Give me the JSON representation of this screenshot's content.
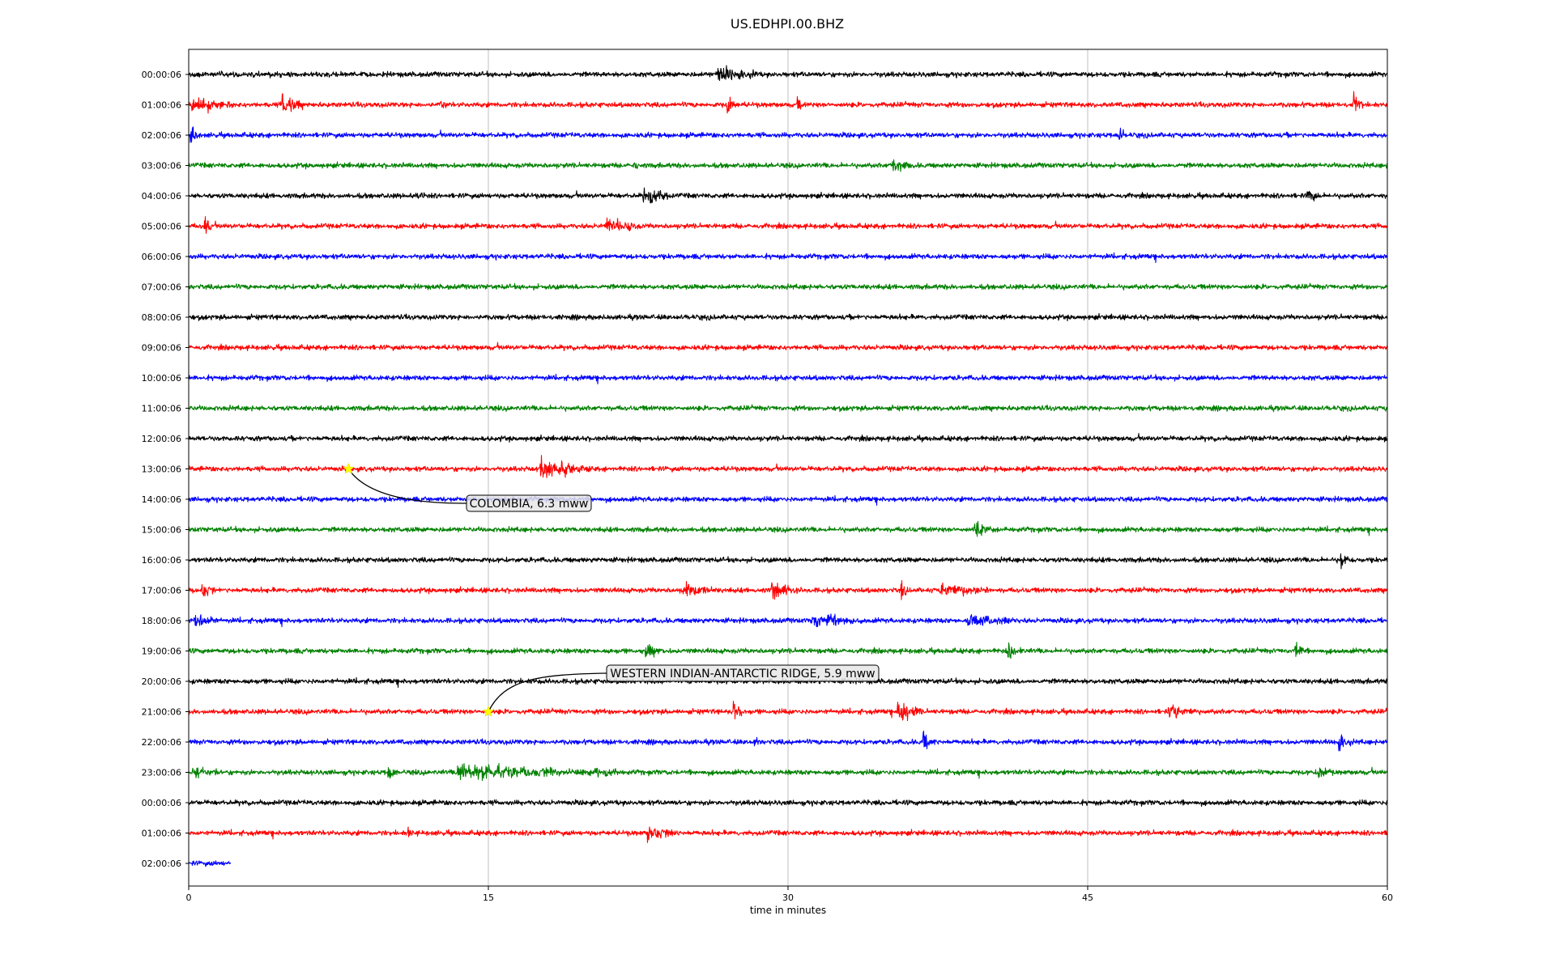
{
  "chart_data": {
    "type": "line",
    "title": "US.EDHPI.00.BHZ",
    "xlabel": "time in minutes",
    "ylabel": "",
    "xlim": [
      0,
      60
    ],
    "xticks": [
      0,
      15,
      30,
      45,
      60
    ],
    "grid": "vertical",
    "row_colors": [
      "#000000",
      "#ff0000",
      "#0000ff",
      "#008000"
    ],
    "row_labels": [
      "00:00:06",
      "01:00:06",
      "02:00:06",
      "03:00:06",
      "04:00:06",
      "05:00:06",
      "06:00:06",
      "07:00:06",
      "08:00:06",
      "09:00:06",
      "10:00:06",
      "11:00:06",
      "12:00:06",
      "13:00:06",
      "14:00:06",
      "15:00:06",
      "16:00:06",
      "17:00:06",
      "18:00:06",
      "19:00:06",
      "20:00:06",
      "21:00:06",
      "22:00:06",
      "23:00:06",
      "00:00:06",
      "01:00:06",
      "02:00:06"
    ],
    "last_row_end_minute": 2.1,
    "events": [
      {
        "row": 0,
        "minute": 26.5,
        "amp": 1.8,
        "dur": 2.0
      },
      {
        "row": 1,
        "minute": 0.2,
        "amp": 1.6,
        "dur": 2.0
      },
      {
        "row": 1,
        "minute": 4.7,
        "amp": 2.0,
        "dur": 1.0
      },
      {
        "row": 1,
        "minute": 12.6,
        "amp": 1.4,
        "dur": 0.4
      },
      {
        "row": 1,
        "minute": 27.0,
        "amp": 2.6,
        "dur": 0.4
      },
      {
        "row": 1,
        "minute": 30.5,
        "amp": 1.2,
        "dur": 0.3
      },
      {
        "row": 1,
        "minute": 58.3,
        "amp": 2.0,
        "dur": 0.5
      },
      {
        "row": 2,
        "minute": 0.1,
        "amp": 2.4,
        "dur": 0.4
      },
      {
        "row": 2,
        "minute": 46.6,
        "amp": 1.8,
        "dur": 0.4
      },
      {
        "row": 3,
        "minute": 22.3,
        "amp": 1.2,
        "dur": 0.3
      },
      {
        "row": 3,
        "minute": 35.2,
        "amp": 1.5,
        "dur": 1.0
      },
      {
        "row": 4,
        "minute": 11.5,
        "amp": 1.0,
        "dur": 0.3
      },
      {
        "row": 4,
        "minute": 22.8,
        "amp": 1.6,
        "dur": 1.3
      },
      {
        "row": 4,
        "minute": 56.0,
        "amp": 1.4,
        "dur": 0.6
      },
      {
        "row": 5,
        "minute": 0.8,
        "amp": 1.5,
        "dur": 0.4
      },
      {
        "row": 5,
        "minute": 20.9,
        "amp": 1.4,
        "dur": 1.8
      },
      {
        "row": 13,
        "minute": 17.6,
        "amp": 2.0,
        "dur": 2.6
      },
      {
        "row": 15,
        "minute": 39.3,
        "amp": 1.6,
        "dur": 0.9
      },
      {
        "row": 16,
        "minute": 57.7,
        "amp": 1.2,
        "dur": 0.4
      },
      {
        "row": 17,
        "minute": 0.7,
        "amp": 1.4,
        "dur": 0.6
      },
      {
        "row": 17,
        "minute": 24.8,
        "amp": 1.4,
        "dur": 1.4
      },
      {
        "row": 17,
        "minute": 29.2,
        "amp": 1.3,
        "dur": 1.5
      },
      {
        "row": 17,
        "minute": 35.7,
        "amp": 1.4,
        "dur": 0.3
      },
      {
        "row": 17,
        "minute": 37.7,
        "amp": 1.2,
        "dur": 2.5
      },
      {
        "row": 18,
        "minute": 0.3,
        "amp": 1.2,
        "dur": 1.2
      },
      {
        "row": 18,
        "minute": 31.2,
        "amp": 1.4,
        "dur": 2.5
      },
      {
        "row": 18,
        "minute": 39.0,
        "amp": 1.2,
        "dur": 2.4
      },
      {
        "row": 19,
        "minute": 22.9,
        "amp": 1.3,
        "dur": 0.8
      },
      {
        "row": 19,
        "minute": 41.0,
        "amp": 1.7,
        "dur": 0.7
      },
      {
        "row": 19,
        "minute": 55.4,
        "amp": 1.6,
        "dur": 0.5
      },
      {
        "row": 21,
        "minute": 27.3,
        "amp": 1.6,
        "dur": 0.6
      },
      {
        "row": 21,
        "minute": 35.5,
        "amp": 2.4,
        "dur": 1.2
      },
      {
        "row": 21,
        "minute": 49.0,
        "amp": 1.2,
        "dur": 1.5
      },
      {
        "row": 22,
        "minute": 28.3,
        "amp": 1.2,
        "dur": 0.3
      },
      {
        "row": 22,
        "minute": 36.8,
        "amp": 1.8,
        "dur": 0.6
      },
      {
        "row": 22,
        "minute": 57.6,
        "amp": 1.8,
        "dur": 0.6
      },
      {
        "row": 23,
        "minute": 0.2,
        "amp": 1.2,
        "dur": 1.2
      },
      {
        "row": 23,
        "minute": 10.0,
        "amp": 1.4,
        "dur": 0.5
      },
      {
        "row": 23,
        "minute": 13.5,
        "amp": 1.5,
        "dur": 8.0
      },
      {
        "row": 23,
        "minute": 56.6,
        "amp": 1.2,
        "dur": 0.8
      },
      {
        "row": 25,
        "minute": 11.0,
        "amp": 1.2,
        "dur": 0.3
      },
      {
        "row": 25,
        "minute": 23.0,
        "amp": 1.3,
        "dur": 1.5
      }
    ],
    "annotations": [
      {
        "text": "COLOMBIA, 6.3 mww",
        "row": 13,
        "minute": 8.0
      },
      {
        "text": "WESTERN INDIAN-ANTARCTIC RIDGE, 5.9 mww",
        "row": 21,
        "minute": 15.0
      }
    ]
  }
}
